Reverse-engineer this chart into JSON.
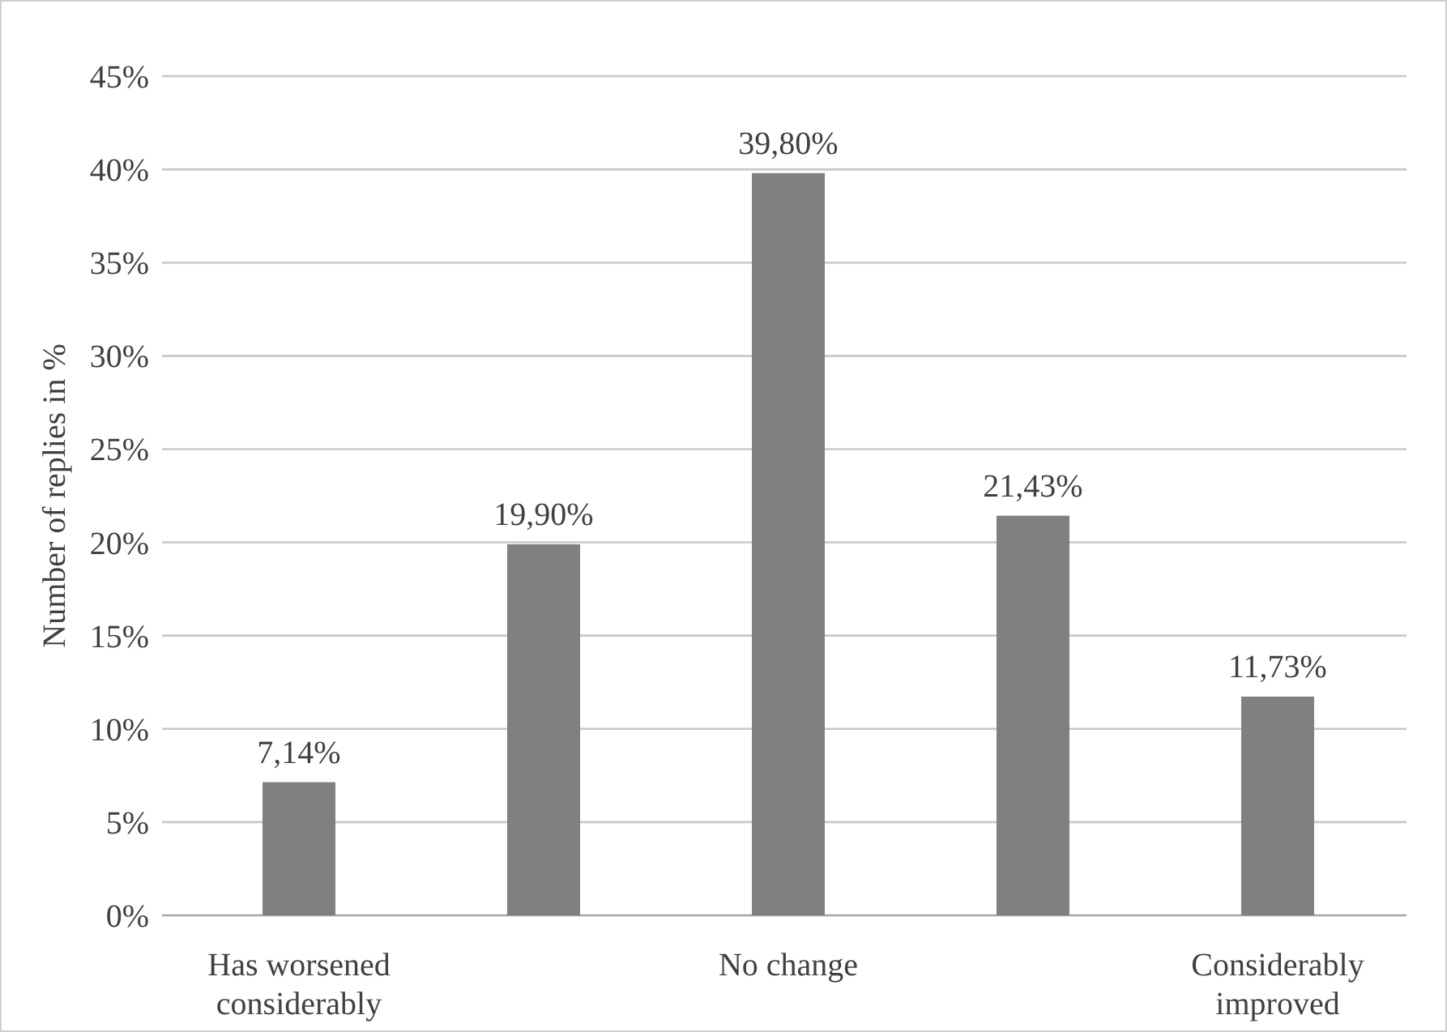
{
  "chart_data": {
    "type": "bar",
    "ylabel": "Number of replies in %",
    "categories": [
      "Has worsened considerably",
      null,
      "No change",
      null,
      "Considerably improved"
    ],
    "values": [
      7.14,
      19.9,
      39.8,
      21.43,
      11.73
    ],
    "value_labels": [
      "7,14%",
      "19,90%",
      "39,80%",
      "21,43%",
      "11,73%"
    ],
    "color": "#808080",
    "ylim": [
      0,
      45
    ],
    "yticks": [
      {
        "value": 0,
        "label": "0%"
      },
      {
        "value": 5,
        "label": "5%"
      },
      {
        "value": 10,
        "label": "10%"
      },
      {
        "value": 15,
        "label": "15%"
      },
      {
        "value": 20,
        "label": "20%"
      },
      {
        "value": 25,
        "label": "25%"
      },
      {
        "value": 30,
        "label": "30%"
      },
      {
        "value": 35,
        "label": "35%"
      },
      {
        "value": 40,
        "label": "40%"
      },
      {
        "value": 45,
        "label": "45%"
      }
    ],
    "grid": "y"
  }
}
